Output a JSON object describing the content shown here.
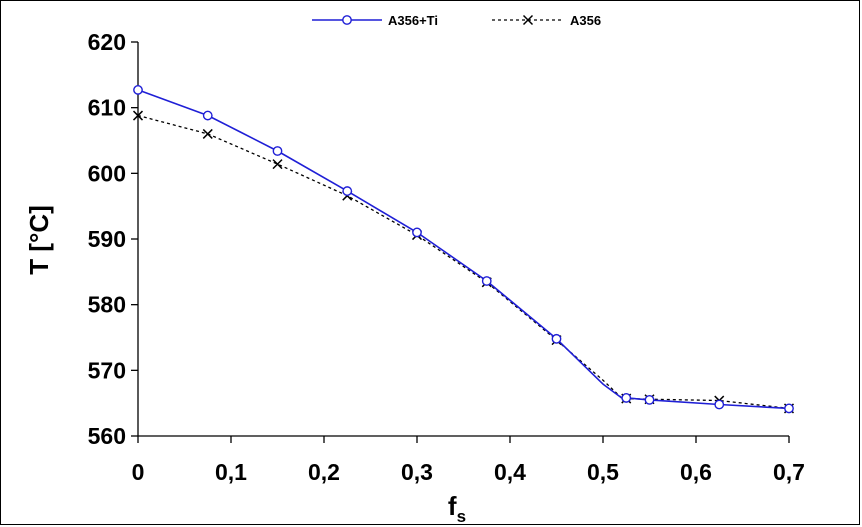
{
  "chart_data": {
    "type": "line",
    "xlabel_main": "f",
    "xlabel_sub": "s",
    "ylabel": "T [°C]",
    "xlim": [
      0,
      0.7
    ],
    "ylim": [
      560,
      620
    ],
    "x_ticks": [
      "0",
      "0,1",
      "0,2",
      "0,3",
      "0,4",
      "0,5",
      "0,6",
      "0,7"
    ],
    "y_ticks": [
      "560",
      "570",
      "580",
      "590",
      "600",
      "610",
      "620"
    ],
    "grid": false,
    "legend_position": "top-center",
    "series": [
      {
        "name": "A356+Ti",
        "color": "#1f1fd6",
        "line_style": "solid",
        "marker": "circle",
        "x": [
          0,
          0.075,
          0.15,
          0.225,
          0.3,
          0.375,
          0.45,
          0.525,
          0.55,
          0.625,
          0.7
        ],
        "y": [
          612.7,
          608.8,
          603.4,
          597.3,
          591.0,
          583.6,
          574.8,
          565.8,
          565.5,
          564.8,
          564.2
        ],
        "curve_x": [
          0,
          0.075,
          0.11,
          0.15,
          0.225,
          0.3,
          0.375,
          0.45,
          0.5,
          0.52,
          0.525,
          0.55,
          0.625,
          0.7
        ],
        "curve_y": [
          612.7,
          608.8,
          606.3,
          603.4,
          597.3,
          591.0,
          583.6,
          574.8,
          567.9,
          565.8,
          565.8,
          565.5,
          564.8,
          564.2
        ]
      },
      {
        "name": "A356",
        "color": "#000000",
        "line_style": "dotted",
        "marker": "x",
        "x": [
          0,
          0.075,
          0.15,
          0.225,
          0.3,
          0.375,
          0.45,
          0.525,
          0.55,
          0.625,
          0.7
        ],
        "y": [
          608.8,
          606.0,
          601.4,
          596.6,
          590.6,
          583.4,
          574.6,
          565.7,
          565.6,
          565.4,
          564.2
        ],
        "curve_x": [
          0,
          0.075,
          0.15,
          0.225,
          0.3,
          0.375,
          0.45,
          0.5,
          0.52,
          0.525,
          0.55,
          0.625,
          0.7
        ],
        "curve_y": [
          608.8,
          606.0,
          601.4,
          596.6,
          590.6,
          583.4,
          574.6,
          568.5,
          565.8,
          565.7,
          565.6,
          565.4,
          564.2
        ]
      }
    ]
  }
}
